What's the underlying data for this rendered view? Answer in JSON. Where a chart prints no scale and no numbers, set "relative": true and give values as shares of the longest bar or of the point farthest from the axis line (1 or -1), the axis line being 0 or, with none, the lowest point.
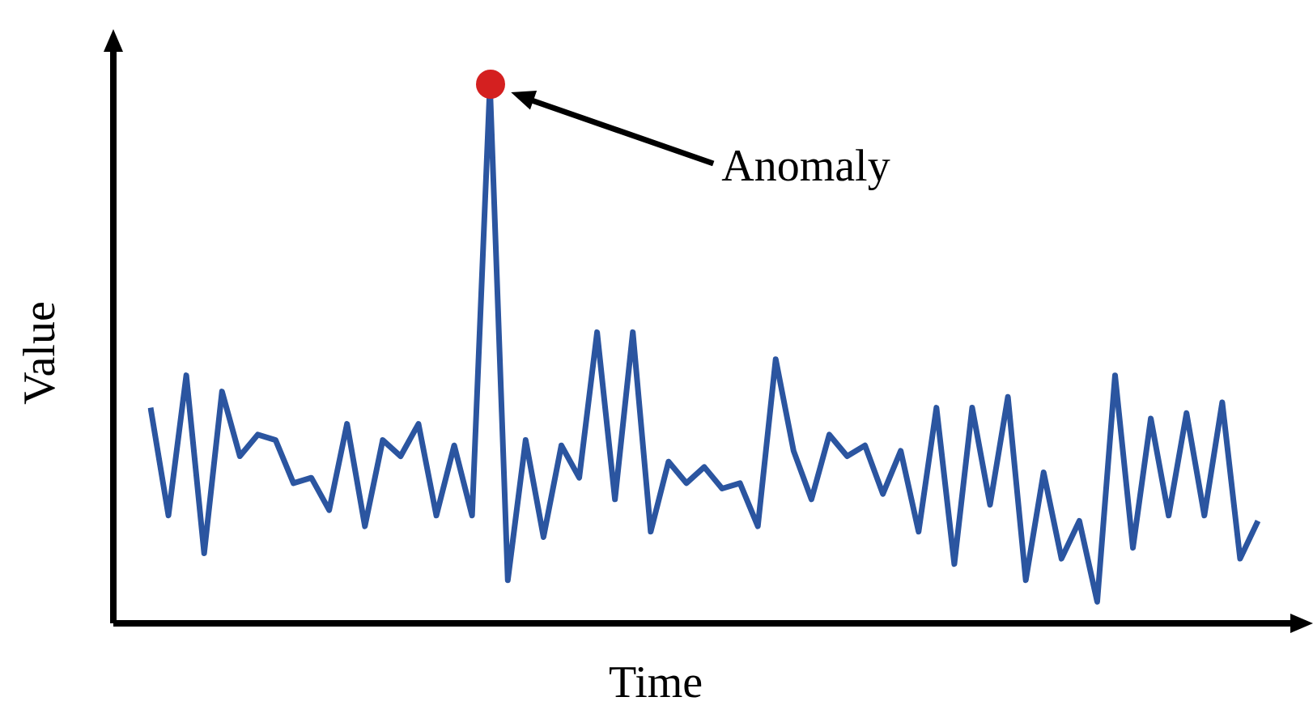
{
  "chart_data": {
    "type": "line",
    "xlabel": "Time",
    "ylabel": "Value",
    "relative": true,
    "marker": "none",
    "categories": [
      null,
      null,
      null,
      null,
      null,
      null,
      null,
      null,
      null,
      null,
      null,
      null,
      null,
      null,
      null,
      null,
      null,
      null,
      null,
      null,
      null,
      null,
      null,
      null,
      null,
      null,
      null,
      null,
      null,
      null,
      null,
      null,
      null,
      null,
      null,
      null,
      null,
      null,
      null,
      null,
      null,
      null,
      null,
      null,
      null,
      null,
      null,
      null,
      null,
      null,
      null,
      null,
      null,
      null,
      null,
      null,
      null,
      null,
      null,
      null,
      null,
      null,
      null
    ],
    "series": [
      {
        "color": "#2b55a0",
        "values": [
          0.4,
          0.2,
          0.46,
          0.13,
          0.43,
          0.31,
          0.35,
          0.34,
          0.26,
          0.27,
          0.21,
          0.37,
          0.18,
          0.34,
          0.31,
          0.37,
          0.2,
          0.33,
          0.2,
          1,
          0.08,
          0.34,
          0.16,
          0.33,
          0.27,
          0.54,
          0.23,
          0.54,
          0.17,
          0.3,
          0.26,
          0.29,
          0.25,
          0.26,
          0.18,
          0.49,
          0.32,
          0.23,
          0.35,
          0.31,
          0.33,
          0.24,
          0.32,
          0.17,
          0.4,
          0.11,
          0.4,
          0.22,
          0.42,
          0.08,
          0.28,
          0.12,
          0.19,
          0.04,
          0.46,
          0.14,
          0.38,
          0.2,
          0.39,
          0.2,
          0.41,
          0.12,
          0.19
        ]
      }
    ],
    "annotations": [
      "Anomaly"
    ]
  }
}
